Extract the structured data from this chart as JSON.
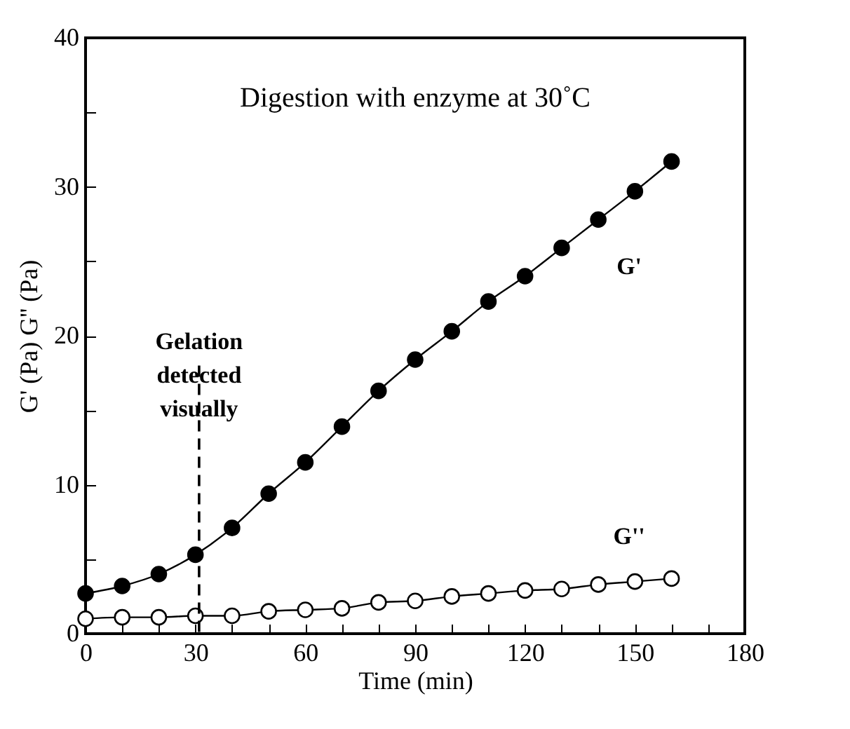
{
  "chart_data": {
    "type": "line",
    "title": "Digestion with enzyme at 30˚C",
    "xlabel": "Time (min)",
    "ylabel": "G' (Pa)      G'' (Pa)",
    "x": [
      0,
      10,
      20,
      30,
      40,
      50,
      60,
      70,
      80,
      90,
      100,
      110,
      120,
      130,
      140,
      150,
      160
    ],
    "series": [
      {
        "name": "G'",
        "color": "#000000",
        "values": [
          2.7,
          3.2,
          4.0,
          5.3,
          7.1,
          9.4,
          11.5,
          13.9,
          16.3,
          18.4,
          20.3,
          22.3,
          24.0,
          25.9,
          27.8,
          29.7,
          31.7
        ]
      },
      {
        "name": "G''",
        "color": "#ffffff",
        "values": [
          1.0,
          1.1,
          1.1,
          1.2,
          1.2,
          1.5,
          1.6,
          1.7,
          2.1,
          2.2,
          2.5,
          2.7,
          2.9,
          3.0,
          3.3,
          3.5,
          3.7
        ]
      }
    ],
    "xlim": [
      0,
      180
    ],
    "xticks": [
      0,
      {
        "value": 10,
        "label": null
      },
      {
        "value": 20,
        "label": null
      },
      30,
      {
        "value": 40,
        "label": null
      },
      {
        "value": 50,
        "label": null
      },
      60,
      {
        "value": 70,
        "label": null
      },
      {
        "value": 80,
        "label": null
      },
      90,
      {
        "value": 100,
        "label": null
      },
      {
        "value": 110,
        "label": null
      },
      120,
      {
        "value": 130,
        "label": null
      },
      {
        "value": 140,
        "label": null
      },
      150,
      {
        "value": 160,
        "label": null
      },
      {
        "value": 170,
        "label": null
      },
      180
    ],
    "ylim": [
      0,
      40
    ],
    "yticks": [
      0,
      {
        "value": 5,
        "label": null
      },
      10,
      {
        "value": 15,
        "label": null
      },
      20,
      {
        "value": 25,
        "label": null
      },
      30,
      {
        "value": 35,
        "label": null
      },
      40
    ],
    "ref_lines": [
      {
        "axis": "x",
        "value": 31,
        "label": "Gelation detected visually",
        "line_style": "dashed"
      }
    ],
    "marker": "circle",
    "line_style": "solid",
    "grid": false
  }
}
